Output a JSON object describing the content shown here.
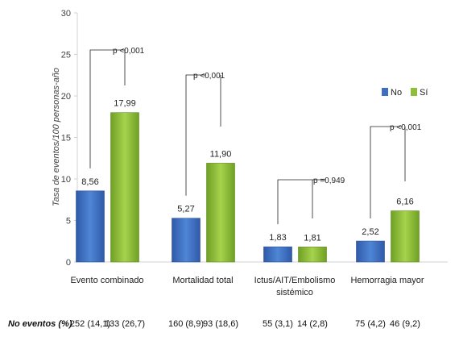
{
  "chart_data": {
    "type": "bar",
    "ylabel": "Tasa de eventos/100 personas-año",
    "ylim": [
      0,
      30
    ],
    "yticks": [
      0,
      5,
      10,
      15,
      20,
      25,
      30
    ],
    "grid": false,
    "legend_position": "right",
    "categories": [
      [
        "Evento combinado"
      ],
      [
        "Mortalidad total"
      ],
      [
        "Ictus/AIT/Embolismo",
        "sistémico"
      ],
      [
        "Hemorragia mayor"
      ]
    ],
    "series": [
      {
        "name": "No",
        "color": "#3f6fbf",
        "values": [
          8.56,
          5.27,
          1.83,
          2.52
        ],
        "labels": [
          "8,56",
          "5,27",
          "1,83",
          "2,52"
        ]
      },
      {
        "name": "Sí",
        "color": "#8fbf3a",
        "values": [
          17.99,
          11.9,
          1.81,
          6.16
        ],
        "labels": [
          "17,99",
          "11,90",
          "1,81",
          "6,16"
        ]
      }
    ],
    "p_values": [
      "p <0,001",
      "p <0,001",
      "p =0,949",
      "p <0,001"
    ],
    "events_title": "No eventos (%)",
    "events": [
      [
        "252 (14,1)",
        "133 (26,7)"
      ],
      [
        "160 (8,9)",
        "93 (18,6)"
      ],
      [
        "55 (3,1)",
        "14 (2,8)"
      ],
      [
        "75 (4,2)",
        "46 (9,2)"
      ]
    ]
  }
}
